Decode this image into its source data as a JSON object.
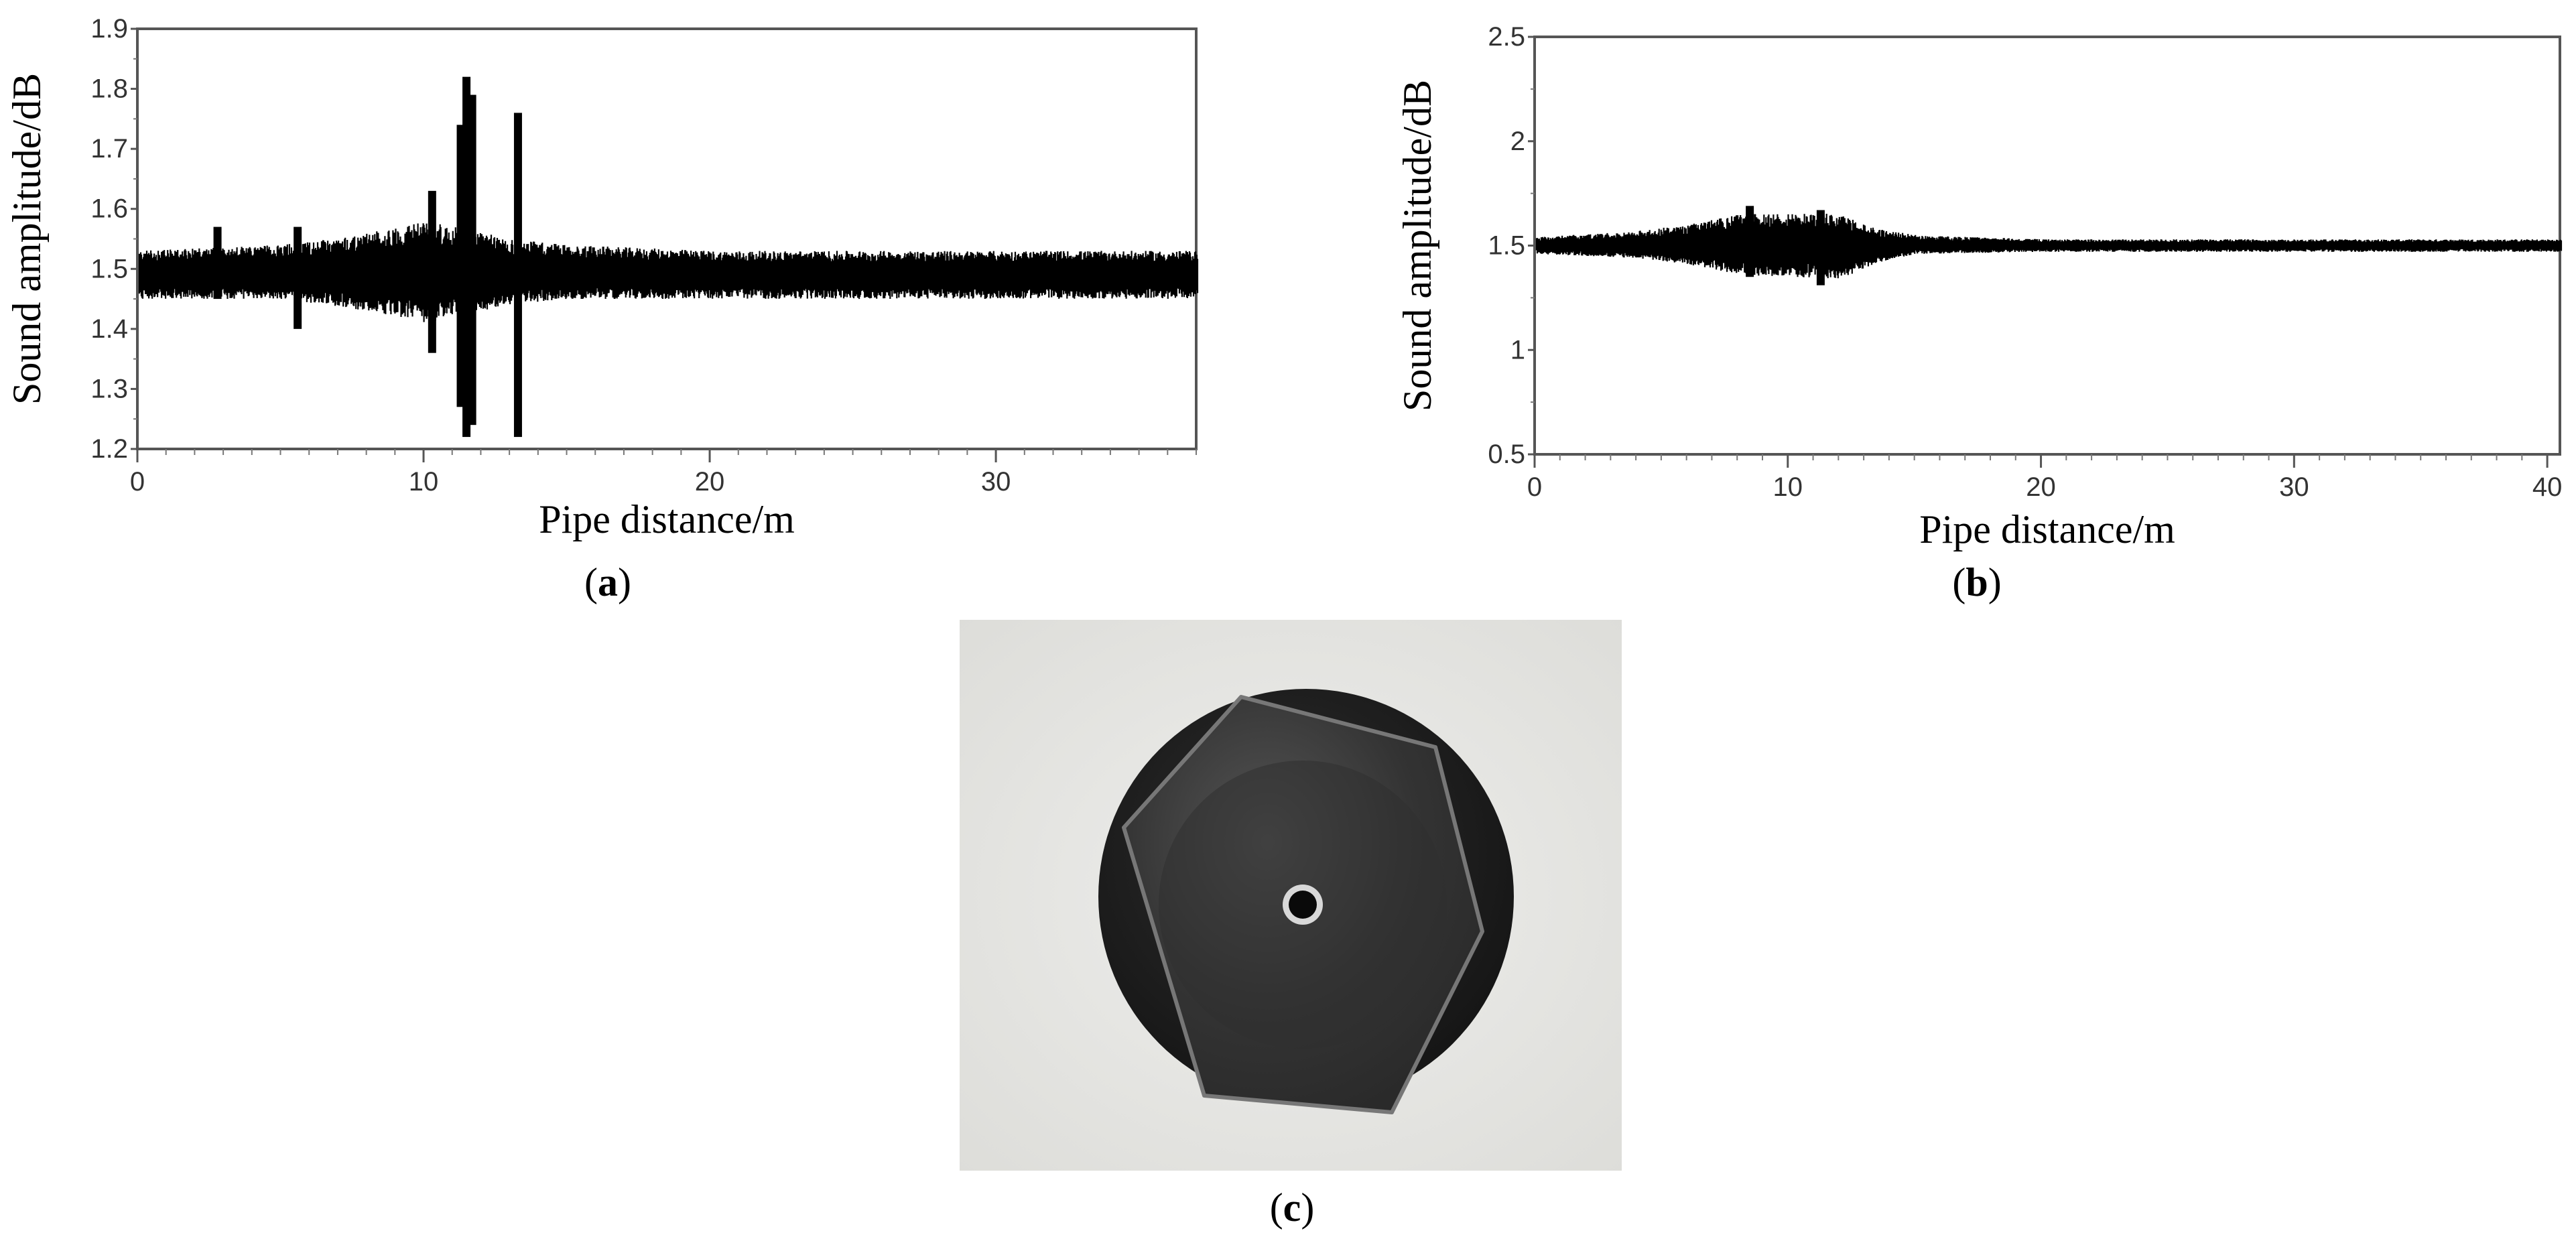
{
  "panels": [
    {
      "label": "a",
      "caption_open": "(",
      "caption_close": ")"
    },
    {
      "label": "b",
      "caption_open": "(",
      "caption_close": ")"
    },
    {
      "label": "c",
      "caption_open": "(",
      "caption_close": ")"
    }
  ],
  "chart_data": [
    {
      "type": "line",
      "panel": "a",
      "xlabel": "Pipe distance/m",
      "ylabel": "Sound amplitude/dB",
      "xlim": [
        0,
        37
      ],
      "ylim": [
        1.2,
        1.9
      ],
      "xticks": [
        0,
        10,
        20,
        30
      ],
      "yticks": [
        1.2,
        1.3,
        1.4,
        1.5,
        1.6,
        1.7,
        1.8,
        1.9
      ],
      "grid": false,
      "line_color": "#000000",
      "series": [
        {
          "baseline": 1.49,
          "envelope": [
            {
              "x": 0,
              "upper": 1.53,
              "lower": 1.45
            },
            {
              "x": 5,
              "upper": 1.54,
              "lower": 1.45
            },
            {
              "x": 8,
              "upper": 1.56,
              "lower": 1.43
            },
            {
              "x": 10,
              "upper": 1.58,
              "lower": 1.41
            },
            {
              "x": 11,
              "upper": 1.57,
              "lower": 1.42
            },
            {
              "x": 13,
              "upper": 1.55,
              "lower": 1.44
            },
            {
              "x": 15,
              "upper": 1.54,
              "lower": 1.45
            },
            {
              "x": 20,
              "upper": 1.53,
              "lower": 1.45
            },
            {
              "x": 30,
              "upper": 1.53,
              "lower": 1.45
            },
            {
              "x": 37,
              "upper": 1.53,
              "lower": 1.45
            }
          ],
          "spikes": [
            {
              "x": 10.3,
              "upper": 1.63,
              "lower": 1.36
            },
            {
              "x": 11.3,
              "upper": 1.74,
              "lower": 1.27
            },
            {
              "x": 11.5,
              "upper": 1.82,
              "lower": 1.22
            },
            {
              "x": 11.7,
              "upper": 1.79,
              "lower": 1.24
            },
            {
              "x": 13.3,
              "upper": 1.76,
              "lower": 1.22
            },
            {
              "x": 2.8,
              "upper": 1.57,
              "lower": 1.45
            },
            {
              "x": 5.6,
              "upper": 1.57,
              "lower": 1.4
            }
          ]
        }
      ]
    },
    {
      "type": "line",
      "panel": "b",
      "xlabel": "Pipe distance/m",
      "ylabel": "Sound amplitude/dB",
      "xlim": [
        0,
        40.5
      ],
      "ylim": [
        0.5,
        2.5
      ],
      "xticks": [
        0,
        10,
        20,
        30,
        40
      ],
      "yticks": [
        0.5,
        1,
        1.5,
        2,
        2.5
      ],
      "grid": false,
      "line_color": "#000000",
      "series": [
        {
          "baseline": 1.5,
          "envelope": [
            {
              "x": 0,
              "upper": 1.54,
              "lower": 1.46
            },
            {
              "x": 4,
              "upper": 1.57,
              "lower": 1.44
            },
            {
              "x": 6,
              "upper": 1.6,
              "lower": 1.41
            },
            {
              "x": 8,
              "upper": 1.65,
              "lower": 1.36
            },
            {
              "x": 10,
              "upper": 1.66,
              "lower": 1.35
            },
            {
              "x": 12,
              "upper": 1.65,
              "lower": 1.34
            },
            {
              "x": 13.5,
              "upper": 1.58,
              "lower": 1.42
            },
            {
              "x": 15,
              "upper": 1.55,
              "lower": 1.46
            },
            {
              "x": 20,
              "upper": 1.53,
              "lower": 1.47
            },
            {
              "x": 30,
              "upper": 1.53,
              "lower": 1.47
            },
            {
              "x": 40.5,
              "upper": 1.53,
              "lower": 1.47
            }
          ],
          "spikes": [
            {
              "x": 8.5,
              "upper": 1.69,
              "lower": 1.35
            },
            {
              "x": 11.3,
              "upper": 1.67,
              "lower": 1.31
            }
          ]
        }
      ]
    }
  ]
}
